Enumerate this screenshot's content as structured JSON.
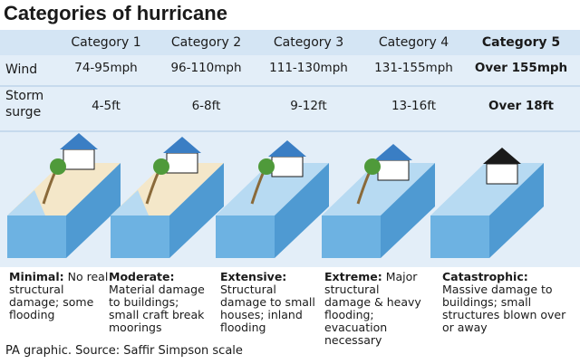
{
  "title": "Categories of hurricane",
  "columns": [
    "Category 1",
    "Category 2",
    "Category 3",
    "Category 4",
    "Category 5"
  ],
  "rows": [
    {
      "label": "Wind",
      "values": [
        "74-95mph",
        "96-110mph",
        "111-130mph",
        "131-155mph",
        "Over 155mph"
      ]
    },
    {
      "label": "Storm surge",
      "values": [
        "4-5ft",
        "6-8ft",
        "9-12ft",
        "13-16ft",
        "Over 18ft"
      ]
    }
  ],
  "descriptions": [
    {
      "lead": "Minimal:",
      "text": "No real structural damage; some flooding"
    },
    {
      "lead": "Moderate:",
      "text": "Material damage to buildings; small craft break moorings"
    },
    {
      "lead": "Extensive:",
      "text": "Structural damage to small houses; inland flooding"
    },
    {
      "lead": "Extreme:",
      "text": "Major structural damage & heavy flooding; evacuation necessary"
    },
    {
      "lead": "Catastrophic:",
      "text": "Massive damage to buildings; small structures blown over or away"
    }
  ],
  "source": "PA graphic. Source: Saffir Simpson scale"
}
